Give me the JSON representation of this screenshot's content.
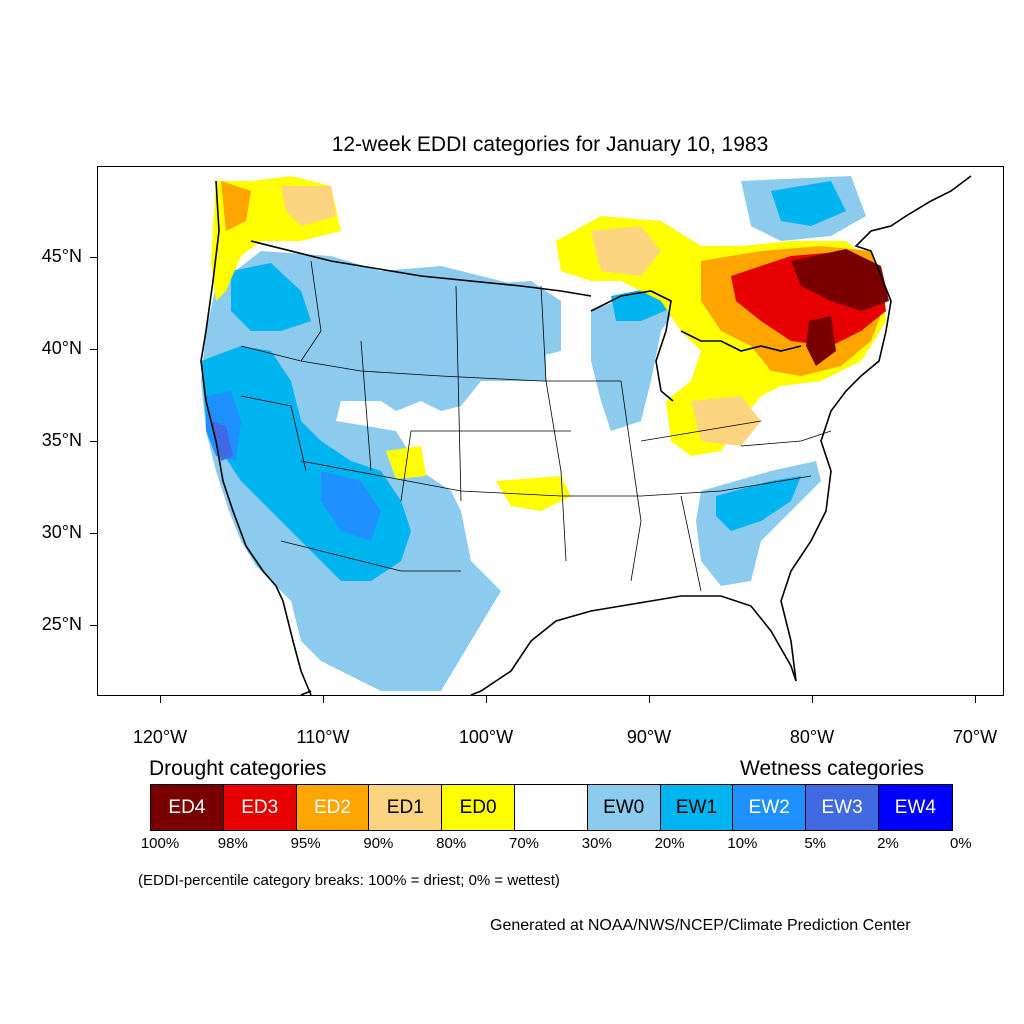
{
  "title": "12-week EDDI categories for January 10, 1983",
  "map": {
    "lat_labels": [
      {
        "text": "45°N",
        "lat": 45
      },
      {
        "text": "40°N",
        "lat": 40
      },
      {
        "text": "35°N",
        "lat": 35
      },
      {
        "text": "30°N",
        "lat": 30
      },
      {
        "text": "25°N",
        "lat": 25
      }
    ],
    "lon_labels": [
      {
        "text": "120°W",
        "lon": -120
      },
      {
        "text": "110°W",
        "lon": -110
      },
      {
        "text": "100°W",
        "lon": -100
      },
      {
        "text": "90°W",
        "lon": -90
      },
      {
        "text": "80°W",
        "lon": -80
      },
      {
        "text": "70°W",
        "lon": -70
      }
    ]
  },
  "legend": {
    "drought_heading": "Drought categories",
    "wetness_heading": "Wetness categories",
    "categories": [
      {
        "label": "ED4",
        "color": "#7a0000",
        "text_color": "#ffffff"
      },
      {
        "label": "ED3",
        "color": "#e60000",
        "text_color": "#ffffff"
      },
      {
        "label": "ED2",
        "color": "#ffa500",
        "text_color": "#ffffff"
      },
      {
        "label": "ED1",
        "color": "#fcd37f",
        "text_color": "#000000"
      },
      {
        "label": "ED0",
        "color": "#ffff00",
        "text_color": "#000000"
      },
      {
        "label": "",
        "color": "#ffffff",
        "text_color": "#000000"
      },
      {
        "label": "EW0",
        "color": "#8ccbee",
        "text_color": "#000000"
      },
      {
        "label": "EW1",
        "color": "#00b4f0",
        "text_color": "#000000"
      },
      {
        "label": "EW2",
        "color": "#1e90ff",
        "text_color": "#ffffff"
      },
      {
        "label": "EW3",
        "color": "#4169e1",
        "text_color": "#ffffff"
      },
      {
        "label": "EW4",
        "color": "#0000ff",
        "text_color": "#ffffff"
      }
    ],
    "breaks": [
      "100%",
      "98%",
      "95%",
      "90%",
      "80%",
      "70%",
      "30%",
      "20%",
      "10%",
      "5%",
      "2%",
      "0%"
    ]
  },
  "note": "(EDDI-percentile category breaks: 100% = driest; 0% = wettest)",
  "credit": "Generated at NOAA/NWS/NCEP/Climate Prediction Center"
}
